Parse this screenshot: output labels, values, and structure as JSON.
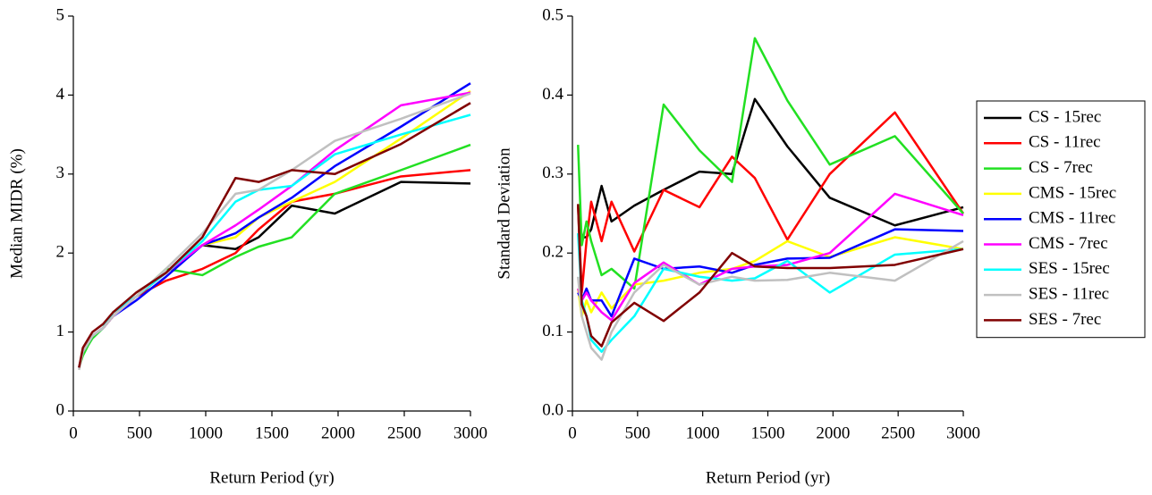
{
  "chart_data": [
    {
      "type": "line",
      "y_label": "Median MIDR (%)",
      "x_label": "Return Period (yr)",
      "x": [
        43,
        72,
        108,
        144,
        224,
        300,
        475,
        700,
        975,
        1225,
        1400,
        1650,
        1975,
        2475,
        3000
      ],
      "xlim": [
        0,
        3000
      ],
      "xticks": [
        0,
        500,
        1000,
        1500,
        2000,
        2500,
        3000
      ],
      "ylim": [
        0,
        5
      ],
      "yticks": [
        0,
        1,
        2,
        3,
        4,
        5
      ],
      "series": [
        {
          "color": "#000000",
          "values": [
            0.55,
            0.75,
            0.85,
            0.95,
            1.05,
            1.2,
            1.45,
            1.75,
            2.1,
            2.05,
            2.2,
            2.6,
            2.5,
            2.9,
            2.88
          ]
        },
        {
          "color": "#ff0000",
          "values": [
            0.55,
            0.75,
            0.85,
            0.95,
            1.05,
            1.2,
            1.45,
            1.65,
            1.8,
            2.0,
            2.3,
            2.65,
            2.75,
            2.97,
            3.05
          ]
        },
        {
          "color": "#22e022",
          "values": [
            0.55,
            0.7,
            0.82,
            0.92,
            1.05,
            1.25,
            1.45,
            1.8,
            1.72,
            1.95,
            2.08,
            2.2,
            2.75,
            3.05,
            3.37
          ]
        },
        {
          "color": "#ffff00",
          "values": [
            0.55,
            0.75,
            0.85,
            0.95,
            1.05,
            1.2,
            1.45,
            1.75,
            2.1,
            2.2,
            2.45,
            2.65,
            2.9,
            3.45,
            4.05
          ]
        },
        {
          "color": "#0000ff",
          "values": [
            0.55,
            0.75,
            0.85,
            0.95,
            1.05,
            1.2,
            1.4,
            1.7,
            2.1,
            2.25,
            2.45,
            2.7,
            3.1,
            3.6,
            4.15
          ]
        },
        {
          "color": "#ff00ff",
          "values": [
            0.55,
            0.75,
            0.85,
            0.95,
            1.05,
            1.2,
            1.45,
            1.75,
            2.1,
            2.35,
            2.55,
            2.85,
            3.3,
            3.87,
            4.03
          ]
        },
        {
          "color": "#00ffff",
          "values": [
            0.55,
            0.75,
            0.85,
            0.95,
            1.05,
            1.25,
            1.45,
            1.75,
            2.15,
            2.65,
            2.8,
            2.85,
            3.25,
            3.5,
            3.75
          ]
        },
        {
          "color": "#c0c0c0",
          "values": [
            0.52,
            0.75,
            0.85,
            0.95,
            1.05,
            1.2,
            1.45,
            1.8,
            2.25,
            2.75,
            2.8,
            3.05,
            3.42,
            3.7,
            4.02
          ]
        },
        {
          "color": "#800000",
          "values": [
            0.55,
            0.8,
            0.9,
            1.0,
            1.1,
            1.25,
            1.5,
            1.75,
            2.2,
            2.95,
            2.9,
            3.05,
            3.0,
            3.38,
            3.9
          ]
        }
      ]
    },
    {
      "type": "line",
      "y_label": "Standard Deviation",
      "x_label": "Return Period (yr)",
      "legend": "right",
      "x": [
        43,
        72,
        108,
        144,
        224,
        300,
        475,
        700,
        975,
        1225,
        1400,
        1650,
        1975,
        2475,
        3000
      ],
      "xlim": [
        0,
        3000
      ],
      "xticks": [
        0,
        500,
        1000,
        1500,
        2000,
        2500,
        3000
      ],
      "ylim": [
        0,
        0.5
      ],
      "yticks": [
        {
          "value": 0,
          "label": "0.0"
        },
        0.1,
        0.2,
        0.3,
        0.4,
        0.5
      ],
      "series": [
        {
          "name": "CS - 15rec",
          "color": "#000000",
          "values": [
            0.26,
            0.22,
            0.22,
            0.23,
            0.285,
            0.24,
            0.26,
            0.28,
            0.303,
            0.3,
            0.395,
            0.335,
            0.27,
            0.235,
            0.258
          ]
        },
        {
          "name": "CS - 11rec",
          "color": "#ff0000",
          "values": [
            0.26,
            0.15,
            0.215,
            0.265,
            0.215,
            0.265,
            0.202,
            0.28,
            0.258,
            0.322,
            0.295,
            0.217,
            0.3,
            0.378,
            0.25
          ]
        },
        {
          "name": "CS - 7rec",
          "color": "#22e022",
          "values": [
            0.337,
            0.21,
            0.24,
            0.215,
            0.172,
            0.18,
            0.155,
            0.388,
            0.33,
            0.29,
            0.472,
            0.393,
            0.312,
            0.348,
            0.25
          ]
        },
        {
          "name": "CMS - 15rec",
          "color": "#ffff00",
          "values": [
            0.155,
            0.12,
            0.14,
            0.125,
            0.15,
            0.13,
            0.16,
            0.165,
            0.175,
            0.18,
            0.19,
            0.215,
            0.195,
            0.22,
            0.205
          ]
        },
        {
          "name": "CMS - 11rec",
          "color": "#0000ff",
          "values": [
            0.15,
            0.14,
            0.155,
            0.14,
            0.14,
            0.12,
            0.193,
            0.18,
            0.183,
            0.175,
            0.185,
            0.193,
            0.194,
            0.23,
            0.228
          ]
        },
        {
          "name": "CMS - 7rec",
          "color": "#ff00ff",
          "values": [
            0.155,
            0.14,
            0.15,
            0.14,
            0.125,
            0.115,
            0.162,
            0.188,
            0.16,
            0.18,
            0.183,
            0.185,
            0.2,
            0.275,
            0.248
          ]
        },
        {
          "name": "SES - 15rec",
          "color": "#00ffff",
          "values": [
            0.225,
            0.14,
            0.12,
            0.09,
            0.075,
            0.09,
            0.12,
            0.18,
            0.17,
            0.165,
            0.168,
            0.19,
            0.15,
            0.198,
            0.205
          ]
        },
        {
          "name": "SES - 11rec",
          "color": "#c0c0c0",
          "values": [
            0.17,
            0.12,
            0.1,
            0.08,
            0.065,
            0.1,
            0.15,
            0.185,
            0.16,
            0.17,
            0.165,
            0.166,
            0.175,
            0.165,
            0.215
          ]
        },
        {
          "name": "SES - 7rec",
          "color": "#800000",
          "values": [
            0.262,
            0.135,
            0.12,
            0.095,
            0.082,
            0.112,
            0.137,
            0.114,
            0.15,
            0.2,
            0.183,
            0.181,
            0.181,
            0.185,
            0.205
          ]
        }
      ]
    }
  ]
}
